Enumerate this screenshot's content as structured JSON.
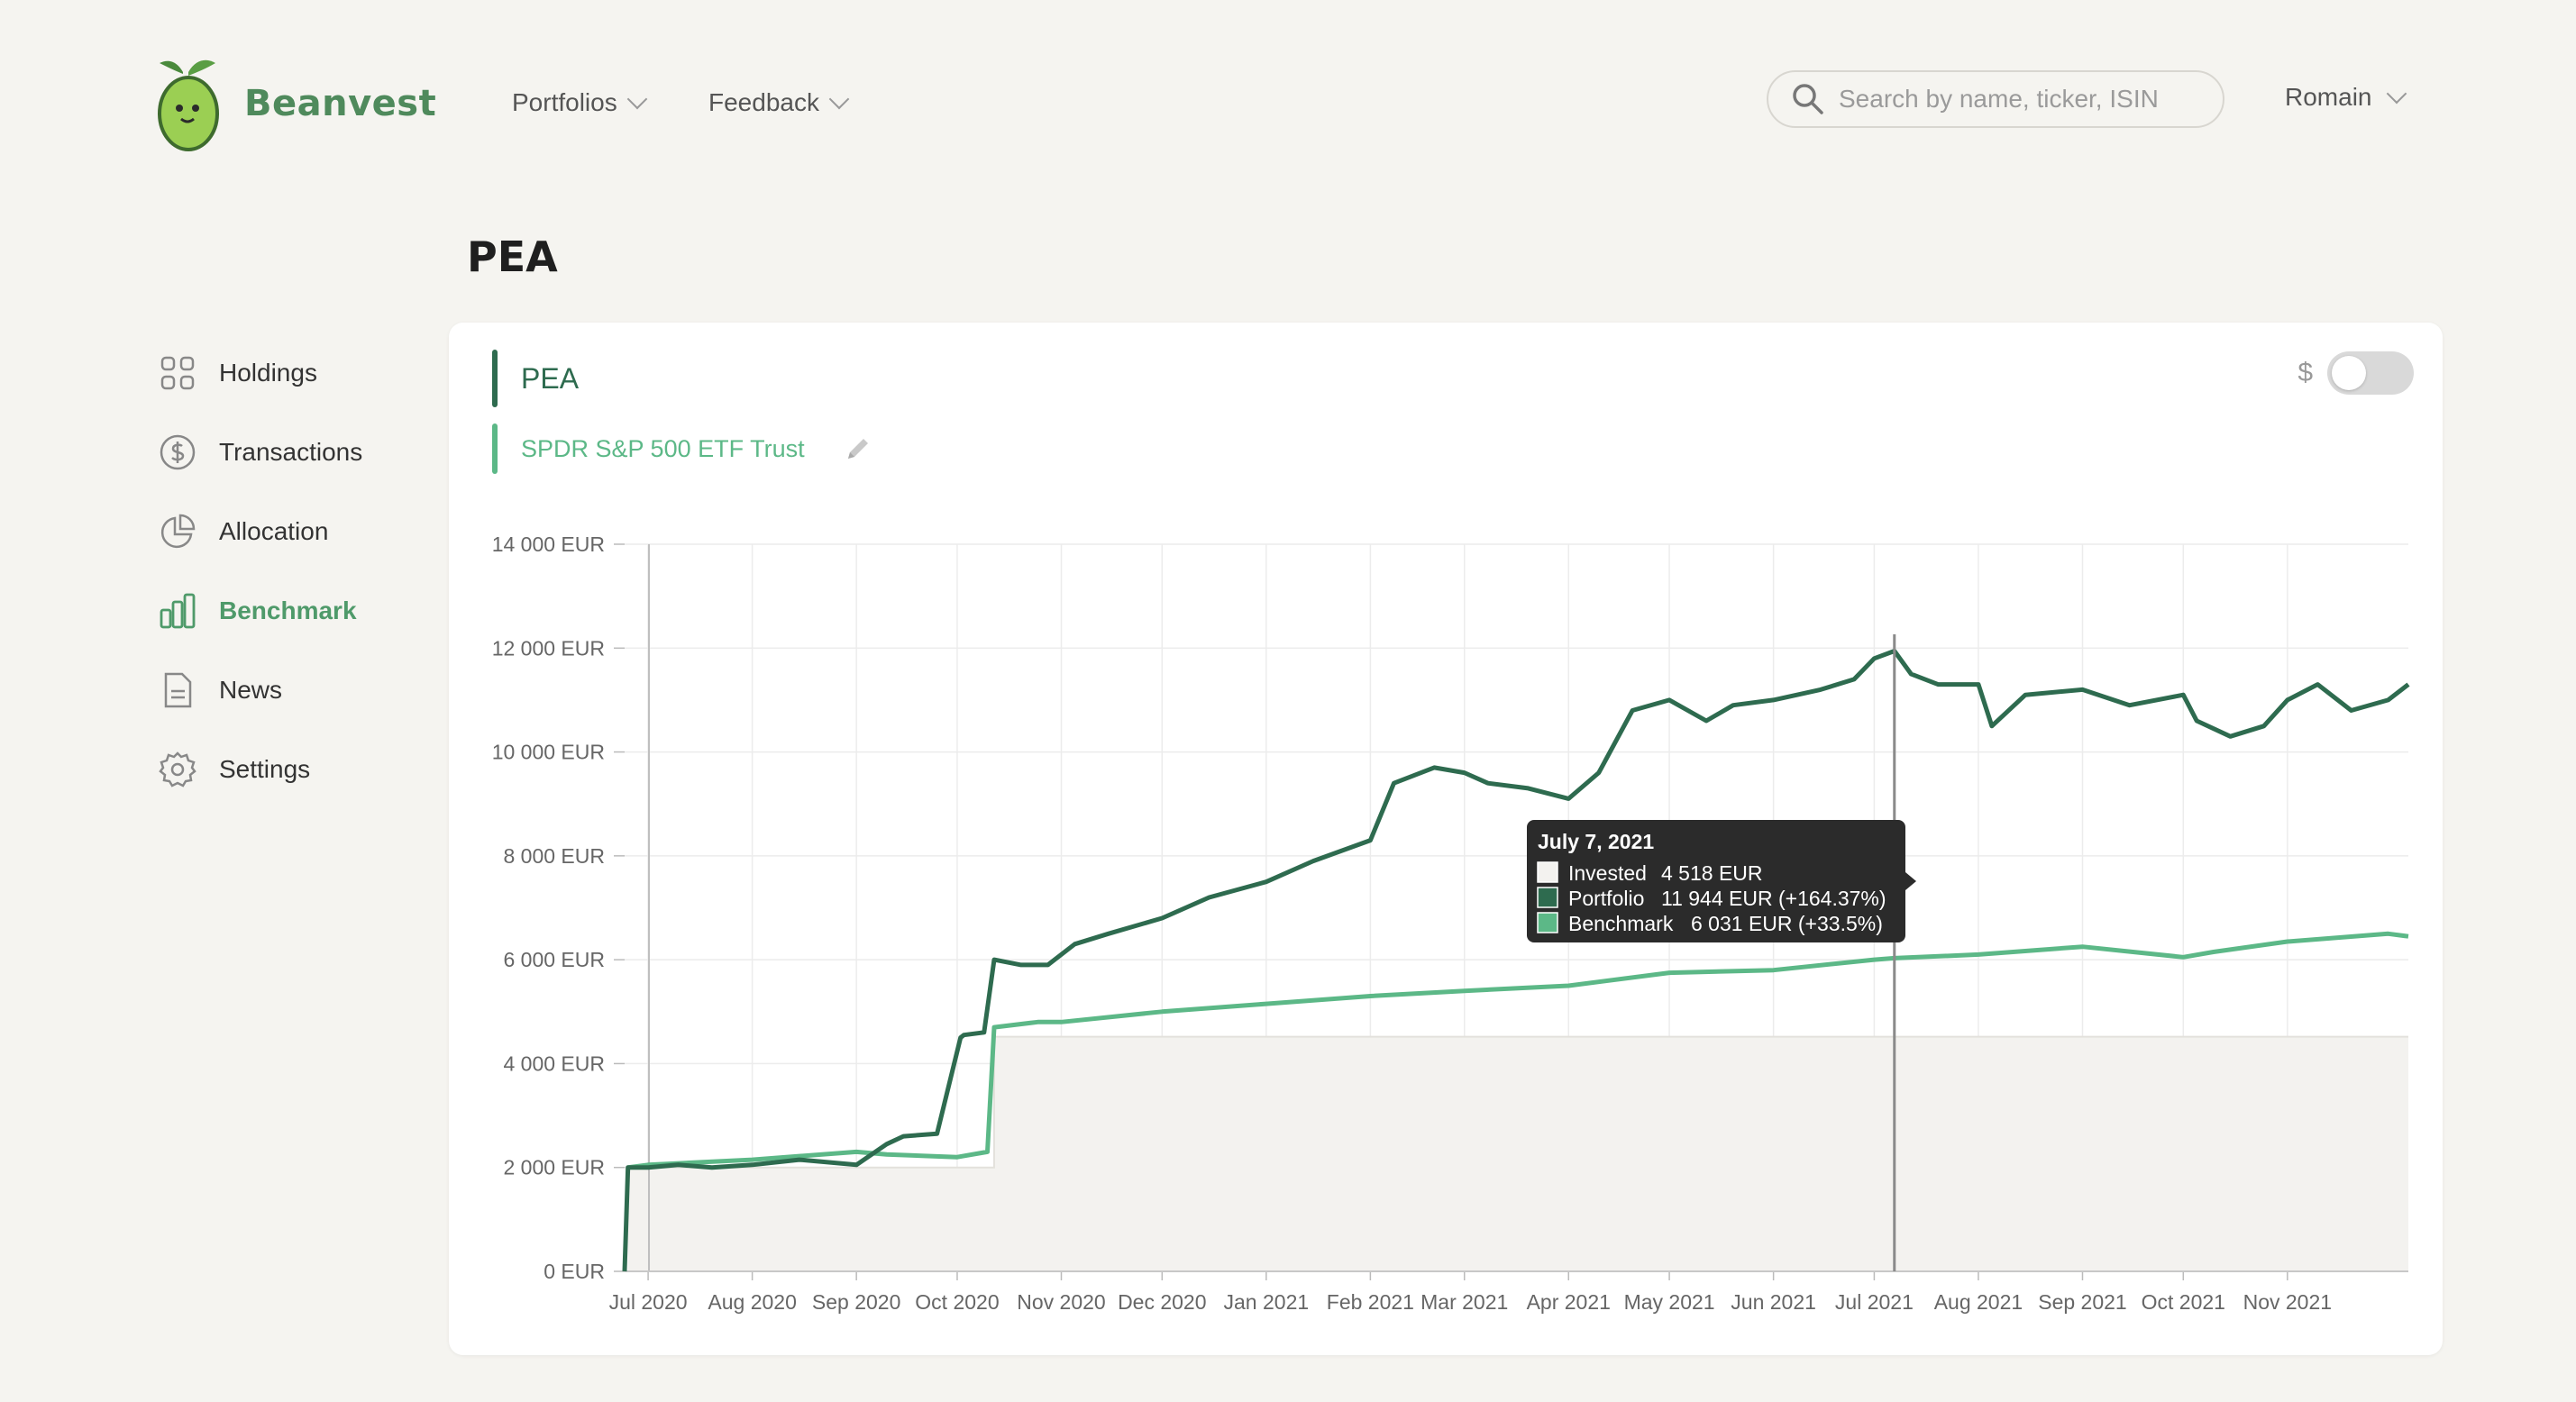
{
  "brand": {
    "name": "Beanvest"
  },
  "nav": [
    {
      "label": "Portfolios"
    },
    {
      "label": "Feedback"
    }
  ],
  "search": {
    "placeholder": "Search by name, ticker, ISIN",
    "value": ""
  },
  "user": {
    "name": "Romain"
  },
  "page": {
    "title": "PEA"
  },
  "sidebar": {
    "items": [
      {
        "label": "Holdings",
        "icon": "grid-icon",
        "active": false
      },
      {
        "label": "Transactions",
        "icon": "dollar-circle-icon",
        "active": false
      },
      {
        "label": "Allocation",
        "icon": "pie-chart-icon",
        "active": false
      },
      {
        "label": "Benchmark",
        "icon": "bar-chart-icon",
        "active": true
      },
      {
        "label": "News",
        "icon": "document-icon",
        "active": false
      },
      {
        "label": "Settings",
        "icon": "gear-icon",
        "active": false
      }
    ]
  },
  "card": {
    "portfolio_label": "PEA",
    "benchmark_label": "SPDR S&P 500 ETF Trust",
    "currency_symbol": "$",
    "currency_toggle_on": false
  },
  "colors": {
    "portfolio": "#2e6b4f",
    "benchmark": "#5cb887",
    "invested_fill": "#f3f2ef",
    "accent": "#4f9a6a"
  },
  "tooltip": {
    "date": "July 7, 2021",
    "rows": [
      {
        "label": "Invested",
        "text": "4 518 EUR"
      },
      {
        "label": "Portfolio",
        "text": "11 944 EUR (+164.37%)"
      },
      {
        "label": "Benchmark",
        "text": "6 031 EUR (+33.5%)"
      }
    ]
  },
  "chart_data": {
    "type": "line",
    "title": "",
    "xlabel": "",
    "ylabel": "",
    "ylim": [
      0,
      14000
    ],
    "y_ticks": [
      0,
      2000,
      4000,
      6000,
      8000,
      10000,
      12000,
      14000
    ],
    "y_tick_labels": [
      "0 EUR",
      "2 000 EUR",
      "4 000 EUR",
      "6 000 EUR",
      "8 000 EUR",
      "10 000 EUR",
      "12 000 EUR",
      "14 000 EUR"
    ],
    "x_ticks": [
      "2020-07-01",
      "2020-08-01",
      "2020-09-01",
      "2020-10-01",
      "2020-11-01",
      "2020-12-01",
      "2021-01-01",
      "2021-02-01",
      "2021-03-01",
      "2021-04-01",
      "2021-05-01",
      "2021-06-01",
      "2021-07-01",
      "2021-08-01",
      "2021-09-01",
      "2021-10-01",
      "2021-11-01"
    ],
    "x_tick_labels": [
      "Jul 2020",
      "Aug 2020",
      "Sep 2020",
      "Oct 2020",
      "Nov 2020",
      "Dec 2020",
      "Jan 2021",
      "Feb 2021",
      "Mar 2021",
      "Apr 2021",
      "May 2021",
      "Jun 2021",
      "Jul 2021",
      "Aug 2021",
      "Sep 2021",
      "Oct 2021",
      "Nov 2021"
    ],
    "x_range": [
      "2020-06-24",
      "2021-12-07"
    ],
    "cursor_date": "2021-07-07",
    "grid": true,
    "legend": "top-left",
    "series": [
      {
        "name": "PEA",
        "color": "#2e6b4f",
        "x": [
          "2020-06-24",
          "2020-06-25",
          "2020-07-01",
          "2020-07-10",
          "2020-07-20",
          "2020-08-01",
          "2020-08-15",
          "2020-09-01",
          "2020-09-10",
          "2020-09-15",
          "2020-09-25",
          "2020-10-02",
          "2020-10-03",
          "2020-10-09",
          "2020-10-12",
          "2020-10-20",
          "2020-10-28",
          "2020-11-05",
          "2020-11-15",
          "2020-12-01",
          "2020-12-15",
          "2021-01-01",
          "2021-01-15",
          "2021-02-01",
          "2021-02-08",
          "2021-02-20",
          "2021-03-01",
          "2021-03-08",
          "2021-03-20",
          "2021-04-01",
          "2021-04-10",
          "2021-04-20",
          "2021-05-01",
          "2021-05-12",
          "2021-05-20",
          "2021-06-01",
          "2021-06-15",
          "2021-06-25",
          "2021-07-01",
          "2021-07-07",
          "2021-07-12",
          "2021-07-20",
          "2021-08-01",
          "2021-08-05",
          "2021-08-15",
          "2021-09-01",
          "2021-09-15",
          "2021-10-01",
          "2021-10-05",
          "2021-10-15",
          "2021-10-25",
          "2021-11-01",
          "2021-11-10",
          "2021-11-20",
          "2021-12-01",
          "2021-12-07"
        ],
        "values": [
          0,
          2000,
          2000,
          2050,
          2000,
          2050,
          2150,
          2050,
          2450,
          2600,
          2650,
          4500,
          4550,
          4600,
          6000,
          5900,
          5900,
          6300,
          6500,
          6800,
          7200,
          7500,
          7900,
          8300,
          9400,
          9700,
          9600,
          9400,
          9300,
          9100,
          9600,
          10800,
          11000,
          10600,
          10900,
          11000,
          11200,
          11400,
          11800,
          11944,
          11500,
          11300,
          11300,
          10500,
          11100,
          11200,
          10900,
          11100,
          10600,
          10300,
          10500,
          11000,
          11300,
          10800,
          11000,
          11300
        ]
      },
      {
        "name": "SPDR S&P 500 ETF Trust",
        "color": "#5cb887",
        "x": [
          "2020-06-25",
          "2020-07-01",
          "2020-08-01",
          "2020-09-01",
          "2020-09-10",
          "2020-10-01",
          "2020-10-10",
          "2020-10-12",
          "2020-10-25",
          "2020-11-01",
          "2020-12-01",
          "2021-01-01",
          "2021-02-01",
          "2021-03-01",
          "2021-04-01",
          "2021-05-01",
          "2021-06-01",
          "2021-07-01",
          "2021-07-07",
          "2021-08-01",
          "2021-09-01",
          "2021-10-01",
          "2021-10-10",
          "2021-11-01",
          "2021-12-01",
          "2021-12-07"
        ],
        "values": [
          2000,
          2050,
          2150,
          2300,
          2250,
          2200,
          2300,
          4700,
          4800,
          4800,
          5000,
          5150,
          5300,
          5400,
          5500,
          5750,
          5800,
          6000,
          6031,
          6100,
          6250,
          6050,
          6150,
          6350,
          6500,
          6450
        ]
      },
      {
        "name": "Invested",
        "color": "#f3f2ef",
        "x": [
          "2020-06-25",
          "2020-10-11",
          "2020-10-12",
          "2021-12-07"
        ],
        "values": [
          2000,
          2000,
          4518,
          4518
        ]
      }
    ]
  }
}
